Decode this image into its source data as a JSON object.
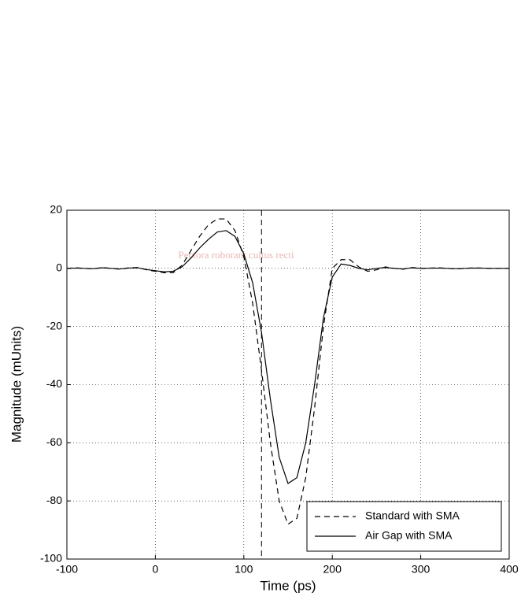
{
  "chart_data": {
    "type": "line",
    "xlabel": "Time (ps)",
    "ylabel": "Magnitude (mUnits)",
    "watermark": "Pectora roborant cultus recti",
    "x": [
      -100,
      -90,
      -80,
      -70,
      -60,
      -50,
      -40,
      -30,
      -20,
      -10,
      0,
      10,
      20,
      30,
      40,
      50,
      60,
      70,
      80,
      90,
      100,
      110,
      120,
      130,
      140,
      150,
      160,
      170,
      180,
      190,
      200,
      210,
      220,
      230,
      240,
      250,
      260,
      270,
      280,
      290,
      300,
      320,
      340,
      360,
      380,
      400
    ],
    "series": [
      {
        "name": "Standard with SMA",
        "color": "#000000",
        "style": "dashed",
        "values": [
          0,
          0.2,
          0,
          -0.2,
          0.3,
          0,
          -0.3,
          0.2,
          0.3,
          -0.5,
          -1,
          -1.5,
          -1.5,
          1,
          6,
          11,
          15,
          17,
          17,
          13,
          4,
          -12,
          -35,
          -60,
          -80,
          -88,
          -86,
          -72,
          -48,
          -20,
          0,
          3,
          3,
          0.5,
          -1,
          -0.5,
          0.5,
          0,
          -0.3,
          0.3,
          0,
          0.2,
          -0.2,
          0.2,
          0,
          0
        ]
      },
      {
        "name": "Air Gap with SMA",
        "color": "#000000",
        "style": "solid",
        "values": [
          0,
          0.1,
          0,
          -0.1,
          0.2,
          0,
          -0.2,
          0.1,
          0.2,
          -0.4,
          -0.8,
          -1.2,
          -1,
          0.5,
          3.5,
          7,
          10,
          12.5,
          13,
          11,
          5,
          -5,
          -22,
          -45,
          -65,
          -74,
          -72,
          -60,
          -40,
          -17,
          -3,
          1.5,
          1,
          0,
          -0.5,
          0,
          0.3,
          0,
          -0.2,
          0.2,
          0,
          0.1,
          -0.1,
          0.1,
          0,
          0
        ]
      }
    ],
    "vline": 120,
    "xlim": [
      -100,
      400
    ],
    "xticks": [
      -100,
      0,
      100,
      200,
      300,
      400
    ],
    "ylim": [
      -100,
      20
    ],
    "yticks": [
      -100,
      -80,
      -60,
      -40,
      -20,
      0,
      20
    ],
    "grid": true,
    "legend": "lower right"
  }
}
